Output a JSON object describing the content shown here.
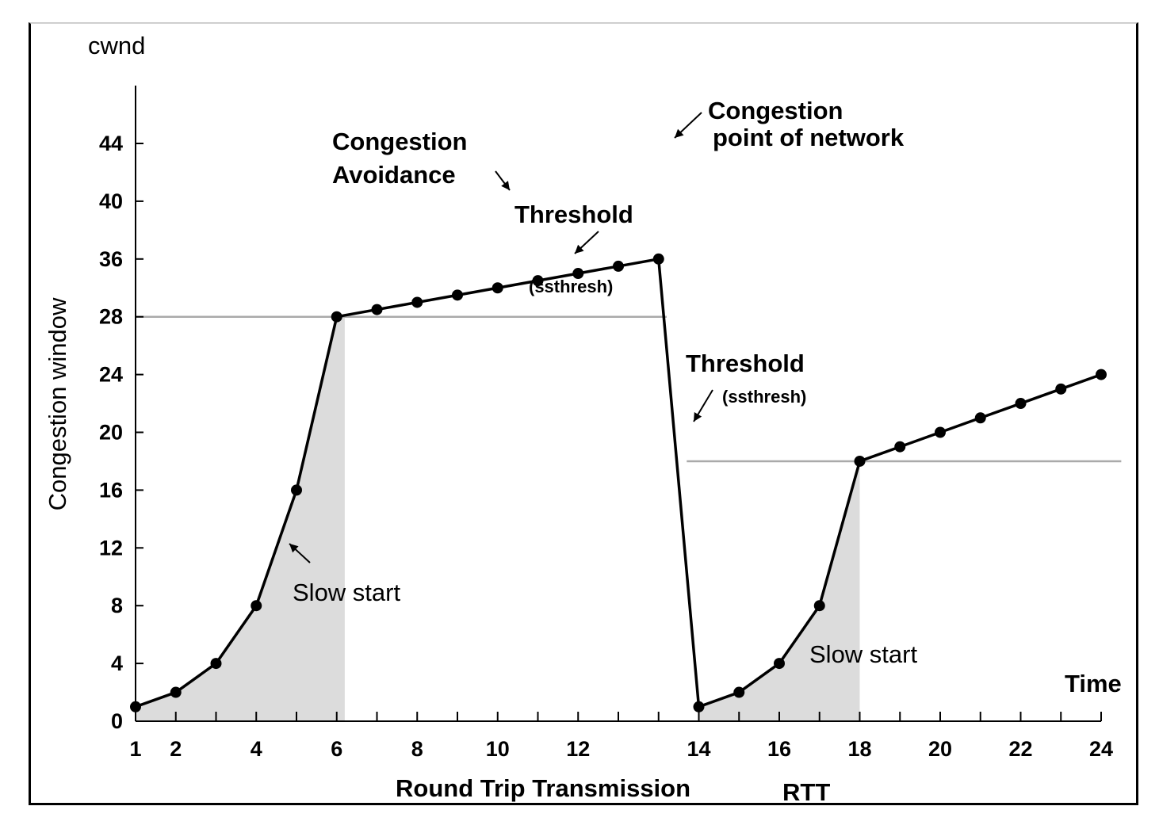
{
  "chart_data": {
    "type": "line",
    "title": "",
    "y_axis_top_label": "cwnd",
    "ylabel": "Congestion window",
    "xlabel": "Round Trip Transmission",
    "xlabel_unit": "RTT",
    "x_end_label": "Time",
    "y_ticks": [
      "0",
      "4",
      "8",
      "12",
      "16",
      "20",
      "24",
      "28",
      "36",
      "40",
      "44"
    ],
    "x_ticks": [
      "1",
      "2",
      "4",
      "6",
      "8",
      "10",
      "12",
      "14",
      "16",
      "18",
      "20",
      "22",
      "24"
    ],
    "series": [
      {
        "values": [
          {
            "x": 1,
            "y": 1
          },
          {
            "x": 2,
            "y": 2
          },
          {
            "x": 3,
            "y": 4
          },
          {
            "x": 4,
            "y": 8
          },
          {
            "x": 5,
            "y": 16
          },
          {
            "x": 6,
            "y": 28
          },
          {
            "x": 7,
            "y": 29
          },
          {
            "x": 8,
            "y": 30
          },
          {
            "x": 9,
            "y": 31
          },
          {
            "x": 10,
            "y": 32
          },
          {
            "x": 11,
            "y": 33
          },
          {
            "x": 12,
            "y": 34
          },
          {
            "x": 13,
            "y": 35
          },
          {
            "x": 14,
            "y": 36
          },
          {
            "x": 15,
            "y": 1
          },
          {
            "x": 16,
            "y": 2
          },
          {
            "x": 17,
            "y": 4
          },
          {
            "x": 18,
            "y": 8
          },
          {
            "x": 19,
            "y": 18
          },
          {
            "x": 20,
            "y": 19
          },
          {
            "x": 21,
            "y": 20
          },
          {
            "x": 22,
            "y": 21
          },
          {
            "x": 23,
            "y": 22
          },
          {
            "x": 24,
            "y": 23
          },
          {
            "x": 25,
            "y": 24
          }
        ]
      }
    ],
    "thresholds": [
      {
        "y": 28,
        "x_from": 1,
        "x_to": 14.2
      },
      {
        "y": 18,
        "x_from": 14.7,
        "x_to": 25.5
      }
    ],
    "shaded_regions": [
      {
        "x_from": 1,
        "x_to": 6.2
      },
      {
        "x_from": 15,
        "x_to": 19
      }
    ],
    "annotations": {
      "congestion_avoidance": [
        "Congestion",
        "Avoidance"
      ],
      "congestion_point": [
        "Congestion",
        "point of network"
      ],
      "threshold_1": "Threshold",
      "ssthresh_1": "(ssthresh)",
      "threshold_2": "Threshold",
      "ssthresh_2": "(ssthresh)",
      "slow_start_1": "Slow start",
      "slow_start_2": "Slow start"
    },
    "colors": {
      "line": "#000000",
      "threshold": "#aaaaaa",
      "shade": "#dcdcdc",
      "marker": "#000000"
    },
    "grid": false,
    "legend": "none"
  }
}
